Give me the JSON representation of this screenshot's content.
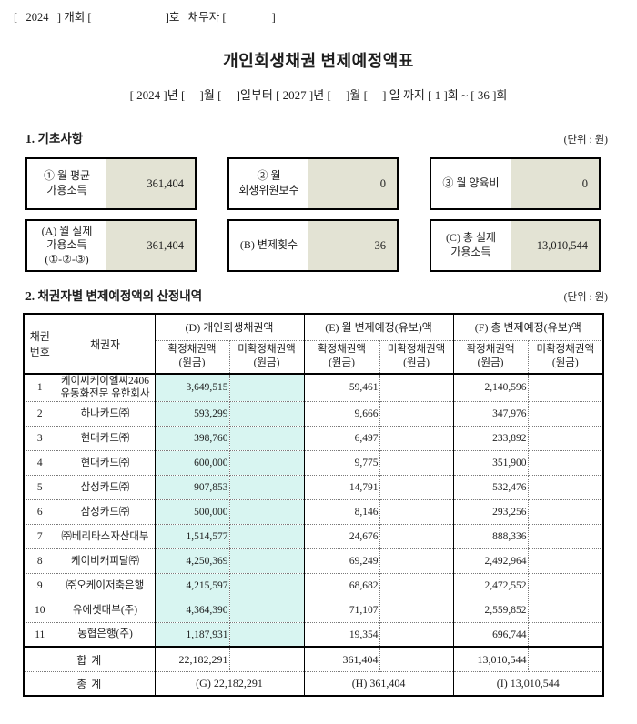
{
  "colors": {
    "highlight_cyan": "#d8f5f1",
    "field_beige": "#e3e3d4",
    "border_black": "#000000"
  },
  "header": {
    "case_line": "[   2024   ] 개회 [                          ]호   채무자 [                ]",
    "title": "개인회생채권 변제예정액표",
    "period_line": "[ 2024 ]년 [     ]월 [     ]일부터 [ 2027 ]년 [     ]월 [     ] 일 까지 [ 1 ]회 ~ [ 36 ]회"
  },
  "section1": {
    "heading": "1. 기초사항",
    "unit_note": "(단위 : 원)",
    "boxes": [
      {
        "label": "① 월 평균\n가용소득",
        "value": "361,404"
      },
      {
        "label": "② 월\n회생위원보수",
        "value": "0"
      },
      {
        "label": "③ 월 양육비",
        "value": "0"
      },
      {
        "label": "(A) 월 실제\n가용소득\n(①-②-③)",
        "value": "361,404"
      },
      {
        "label": "(B) 변제횟수",
        "value": "36"
      },
      {
        "label": "(C) 총 실제\n가용소득",
        "value": "13,010,544"
      }
    ]
  },
  "section2": {
    "heading": "2. 채권자별 변제예정액의 산정내역",
    "unit_note": "(단위 : 원)"
  },
  "table": {
    "header": {
      "no": "채권\n번호",
      "creditor": "채권자",
      "groups": [
        "(D) 개인회생채권액",
        "(E) 월 변제예정(유보)액",
        "(F) 총 변제예정(유보)액"
      ],
      "fixed": "확정채권액\n(원금)",
      "unfixed": "미확정채권액\n(원금)"
    },
    "rows": [
      {
        "no": "1",
        "creditor": "케이씨케이엘씨2406유동화전문 유한회사",
        "d_fixed": "3,649,515",
        "d_unfixed": "",
        "e_fixed": "59,461",
        "e_unfixed": "",
        "f_fixed": "2,140,596",
        "f_unfixed": ""
      },
      {
        "no": "2",
        "creditor": "하나카드㈜",
        "d_fixed": "593,299",
        "d_unfixed": "",
        "e_fixed": "9,666",
        "e_unfixed": "",
        "f_fixed": "347,976",
        "f_unfixed": ""
      },
      {
        "no": "3",
        "creditor": "현대카드㈜",
        "d_fixed": "398,760",
        "d_unfixed": "",
        "e_fixed": "6,497",
        "e_unfixed": "",
        "f_fixed": "233,892",
        "f_unfixed": ""
      },
      {
        "no": "4",
        "creditor": "현대카드㈜",
        "d_fixed": "600,000",
        "d_unfixed": "",
        "e_fixed": "9,775",
        "e_unfixed": "",
        "f_fixed": "351,900",
        "f_unfixed": ""
      },
      {
        "no": "5",
        "creditor": "삼성카드㈜",
        "d_fixed": "907,853",
        "d_unfixed": "",
        "e_fixed": "14,791",
        "e_unfixed": "",
        "f_fixed": "532,476",
        "f_unfixed": ""
      },
      {
        "no": "6",
        "creditor": "삼성카드㈜",
        "d_fixed": "500,000",
        "d_unfixed": "",
        "e_fixed": "8,146",
        "e_unfixed": "",
        "f_fixed": "293,256",
        "f_unfixed": ""
      },
      {
        "no": "7",
        "creditor": "㈜베리타스자산대부",
        "d_fixed": "1,514,577",
        "d_unfixed": "",
        "e_fixed": "24,676",
        "e_unfixed": "",
        "f_fixed": "888,336",
        "f_unfixed": ""
      },
      {
        "no": "8",
        "creditor": "케이비캐피탈㈜",
        "d_fixed": "4,250,369",
        "d_unfixed": "",
        "e_fixed": "69,249",
        "e_unfixed": "",
        "f_fixed": "2,492,964",
        "f_unfixed": ""
      },
      {
        "no": "9",
        "creditor": "㈜오케이저축은행",
        "d_fixed": "4,215,597",
        "d_unfixed": "",
        "e_fixed": "68,682",
        "e_unfixed": "",
        "f_fixed": "2,472,552",
        "f_unfixed": ""
      },
      {
        "no": "10",
        "creditor": "유에셋대부(주)",
        "d_fixed": "4,364,390",
        "d_unfixed": "",
        "e_fixed": "71,107",
        "e_unfixed": "",
        "f_fixed": "2,559,852",
        "f_unfixed": ""
      },
      {
        "no": "11",
        "creditor": "농협은행(주)",
        "d_fixed": "1,187,931",
        "d_unfixed": "",
        "e_fixed": "19,354",
        "e_unfixed": "",
        "f_fixed": "696,744",
        "f_unfixed": ""
      }
    ],
    "subtotal": {
      "label": "합 계",
      "d_fixed": "22,182,291",
      "d_unfixed": "",
      "e_fixed": "361,404",
      "e_unfixed": "",
      "f_fixed": "13,010,544",
      "f_unfixed": ""
    },
    "total": {
      "label": "총 계",
      "d": "(G) 22,182,291",
      "e": "(H) 361,404",
      "f": "(I) 13,010,544"
    }
  }
}
